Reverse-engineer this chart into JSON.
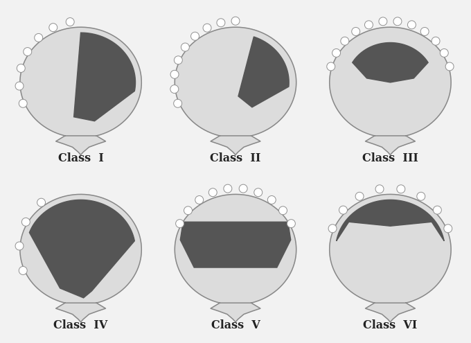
{
  "bg_color": "#f2f2f2",
  "palate_color": "#dcdcdc",
  "palate_edge_color": "#888888",
  "defect_color": "#555555",
  "teeth_color": "#ffffff",
  "teeth_edge_color": "#909090",
  "label_fontsize": 11.5,
  "classes": [
    "Class  I",
    "Class  II",
    "Class  III",
    "Class  IV",
    "Class  V",
    "Class  VI"
  ]
}
